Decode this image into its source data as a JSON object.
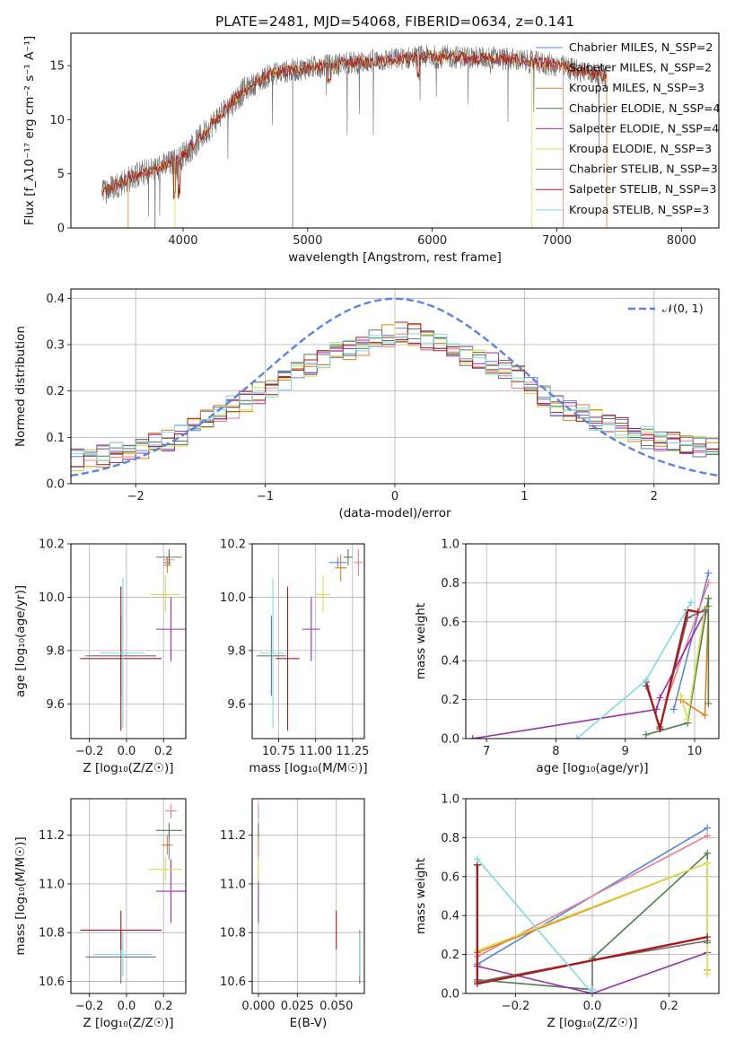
{
  "title": "PLATE=2481, MJD=54068, FIBERID=0634, z=0.141",
  "colors": {
    "chabrier_miles": "#5a84e0",
    "salpeter_miles": "#ea7f8f",
    "kroupa_miles": "#e6801a",
    "chabrier_elodie": "#4f7f4f",
    "salpeter_elodie": "#9a2fb0",
    "kroupa_elodie": "#d6e050",
    "chabrier_stelib": "#707070",
    "salpeter_stelib": "#aa1c1c",
    "kroupa_stelib": "#7fd9e8"
  },
  "chart_data": [
    {
      "type": "line",
      "panel": "spectrum",
      "xlabel": "wavelength [Angstrom, rest frame]",
      "ylabel": "Flux [f_λ10⁻¹⁷ erg cm⁻² s⁻¹ A⁻¹]",
      "xlim": [
        3100,
        8300
      ],
      "ylim": [
        0,
        18
      ],
      "xticks": [
        "4000",
        "5000",
        "6000",
        "7000",
        "8000"
      ],
      "yticks": [
        "0",
        "5",
        "10",
        "15"
      ],
      "legend_position": "top-right",
      "series": [
        {
          "name": "Chabrier MILES, N_SSP=2",
          "color_key": "chabrier_miles"
        },
        {
          "name": "Salpeter MILES, N_SSP=2",
          "color_key": "salpeter_miles"
        },
        {
          "name": "Kroupa MILES, N_SSP=3",
          "color_key": "kroupa_miles"
        },
        {
          "name": "Chabrier ELODIE, N_SSP=4",
          "color_key": "chabrier_elodie"
        },
        {
          "name": "Salpeter ELODIE, N_SSP=4",
          "color_key": "salpeter_elodie"
        },
        {
          "name": "Kroupa ELODIE, N_SSP=3",
          "color_key": "kroupa_elodie"
        },
        {
          "name": "Chabrier STELIB, N_SSP=3",
          "color_key": "chabrier_stelib"
        },
        {
          "name": "Salpeter STELIB, N_SSP=3",
          "color_key": "salpeter_stelib"
        },
        {
          "name": "Kroupa STELIB, N_SSP=3",
          "color_key": "kroupa_stelib"
        }
      ],
      "continuum": {
        "x": [
          3350,
          3500,
          3650,
          3800,
          3950,
          4100,
          4300,
          4500,
          4700,
          5000,
          5300,
          5600,
          5900,
          6200,
          6500,
          6700,
          7000,
          7200,
          7400
        ],
        "y": [
          3.2,
          4.2,
          5.0,
          5.5,
          6.2,
          7.8,
          10.5,
          12.8,
          14.2,
          14.8,
          15.2,
          15.5,
          15.8,
          15.8,
          15.7,
          15.5,
          15.0,
          14.5,
          14.0
        ]
      }
    },
    {
      "type": "histogram",
      "panel": "residuals",
      "xlabel": "(data-model)/error",
      "ylabel": "Normed distribution",
      "xlim": [
        -2.5,
        2.5
      ],
      "ylim": [
        0,
        0.42
      ],
      "xticks": [
        "−2",
        "−1",
        "0",
        "1",
        "2"
      ],
      "yticks": [
        "0.0",
        "0.1",
        "0.2",
        "0.3",
        "0.4"
      ],
      "bins": {
        "start": -2.5,
        "width": 0.1,
        "count": 50
      },
      "envelope": [
        0.05,
        0.055,
        0.06,
        0.065,
        0.07,
        0.075,
        0.085,
        0.095,
        0.105,
        0.12,
        0.135,
        0.15,
        0.165,
        0.18,
        0.195,
        0.21,
        0.225,
        0.24,
        0.255,
        0.27,
        0.28,
        0.29,
        0.3,
        0.31,
        0.32,
        0.33,
        0.32,
        0.31,
        0.3,
        0.29,
        0.28,
        0.27,
        0.26,
        0.25,
        0.23,
        0.21,
        0.19,
        0.17,
        0.16,
        0.15,
        0.14,
        0.13,
        0.12,
        0.11,
        0.1,
        0.095,
        0.09,
        0.085,
        0.08,
        0.075
      ],
      "gaussian_label": "𝒩(0, 1)",
      "gaussian_color": "#5a84e0"
    },
    {
      "type": "errorbar",
      "panel": "age_vs_Z",
      "xlabel": "Z [log₁₀(Z/Z☉)]",
      "ylabel": "age  [log₁₀(age/yr)]",
      "xlim": [
        -0.3,
        0.32
      ],
      "ylim": [
        9.47,
        10.2
      ],
      "xticks": [
        "−0.2",
        "0.0",
        "0.2"
      ],
      "yticks": [
        "9.6",
        "9.8",
        "10.0",
        "10.2"
      ],
      "points": [
        {
          "c": "chabrier_miles",
          "x": 0.22,
          "y": 10.13,
          "xe": 0.02,
          "ye": 0.02
        },
        {
          "c": "salpeter_miles",
          "x": 0.23,
          "y": 10.14,
          "xe": 0.03,
          "ye": 0.02
        },
        {
          "c": "kroupa_miles",
          "x": 0.22,
          "y": 10.12,
          "xe": 0.02,
          "ye": 0.03
        },
        {
          "c": "chabrier_elodie",
          "x": 0.23,
          "y": 10.15,
          "xe": 0.07,
          "ye": 0.03
        },
        {
          "c": "salpeter_elodie",
          "x": 0.24,
          "y": 9.88,
          "xe": 0.08,
          "ye": 0.12
        },
        {
          "c": "kroupa_elodie",
          "x": 0.21,
          "y": 10.01,
          "xe": 0.08,
          "ye": 0.07
        },
        {
          "c": "chabrier_stelib",
          "x": -0.03,
          "y": 9.78,
          "xe": 0.19,
          "ye": 0.15
        },
        {
          "c": "salpeter_stelib",
          "x": -0.03,
          "y": 9.77,
          "xe": 0.22,
          "ye": 0.27
        },
        {
          "c": "kroupa_stelib",
          "x": -0.02,
          "y": 9.79,
          "xe": 0.12,
          "ye": 0.28
        }
      ]
    },
    {
      "type": "errorbar",
      "panel": "age_vs_mass",
      "xlabel": "mass [log₁₀(M/M☉)]",
      "ylabel": "",
      "xlim": [
        10.57,
        11.33
      ],
      "ylim": [
        9.47,
        10.2
      ],
      "xticks": [
        "10.75",
        "11.00",
        "11.25"
      ],
      "yticks": [
        "9.6",
        "9.8",
        "10.0",
        "10.2"
      ],
      "points": [
        {
          "c": "chabrier_miles",
          "x": 11.15,
          "y": 10.13,
          "xe": 0.06,
          "ye": 0.02
        },
        {
          "c": "salpeter_miles",
          "x": 11.29,
          "y": 10.13,
          "xe": 0.03,
          "ye": 0.05
        },
        {
          "c": "kroupa_miles",
          "x": 11.17,
          "y": 10.11,
          "xe": 0.04,
          "ye": 0.05
        },
        {
          "c": "chabrier_elodie",
          "x": 11.22,
          "y": 10.15,
          "xe": 0.03,
          "ye": 0.03
        },
        {
          "c": "salpeter_elodie",
          "x": 10.97,
          "y": 9.88,
          "xe": 0.06,
          "ye": 0.12
        },
        {
          "c": "kroupa_elodie",
          "x": 11.05,
          "y": 10.01,
          "xe": 0.05,
          "ye": 0.07
        },
        {
          "c": "chabrier_stelib",
          "x": 10.7,
          "y": 9.78,
          "xe": 0.1,
          "ye": 0.15
        },
        {
          "c": "salpeter_stelib",
          "x": 10.81,
          "y": 9.77,
          "xe": 0.08,
          "ye": 0.27
        },
        {
          "c": "kroupa_stelib",
          "x": 10.71,
          "y": 9.79,
          "xe": 0.09,
          "ye": 0.28
        }
      ]
    },
    {
      "type": "line",
      "panel": "weight_vs_age",
      "xlabel": "age  [log₁₀(age/yr)]",
      "ylabel": "mass weight",
      "xlim": [
        6.7,
        10.35
      ],
      "ylim": [
        0,
        1
      ],
      "xticks": [
        "7",
        "8",
        "9",
        "10"
      ],
      "yticks": [
        "0.0",
        "0.2",
        "0.4",
        "0.6",
        "0.8",
        "1.0"
      ],
      "series": [
        {
          "c": "chabrier_miles",
          "x": [
            9.7,
            10.2
          ],
          "y": [
            0.15,
            0.85
          ]
        },
        {
          "c": "salpeter_miles",
          "x": [
            9.6,
            10.2
          ],
          "y": [
            0.2,
            0.8
          ]
        },
        {
          "c": "kroupa_miles",
          "x": [
            9.8,
            10.15,
            10.2
          ],
          "y": [
            0.2,
            0.12,
            0.68
          ]
        },
        {
          "c": "chabrier_elodie",
          "x": [
            9.3,
            9.9,
            10.2,
            10.2
          ],
          "y": [
            0.02,
            0.08,
            0.72,
            0.18
          ]
        },
        {
          "c": "salpeter_elodie",
          "x": [
            6.8,
            9.45,
            9.5,
            10.15
          ],
          "y": [
            0.0,
            0.15,
            0.21,
            0.65
          ]
        },
        {
          "c": "kroupa_elodie",
          "x": [
            9.8,
            9.9,
            10.15
          ],
          "y": [
            0.22,
            0.1,
            0.67
          ]
        },
        {
          "c": "chabrier_stelib",
          "x": [
            9.3,
            9.5,
            9.9,
            10.15
          ],
          "y": [
            0.27,
            0.06,
            0.62,
            0.66
          ]
        },
        {
          "c": "salpeter_stelib",
          "x": [
            9.3,
            9.5,
            9.9,
            10.05
          ],
          "y": [
            0.29,
            0.05,
            0.66,
            0.65
          ]
        },
        {
          "c": "kroupa_stelib",
          "x": [
            8.3,
            9.3,
            9.95
          ],
          "y": [
            0.0,
            0.3,
            0.7
          ]
        }
      ]
    },
    {
      "type": "errorbar",
      "panel": "mass_vs_Z",
      "xlabel": "Z [log₁₀(Z/Z☉)]",
      "ylabel": "mass [log₁₀(M/M☉)]",
      "xlim": [
        -0.3,
        0.32
      ],
      "ylim": [
        10.55,
        11.35
      ],
      "xticks": [
        "−0.2",
        "0.0",
        "0.2"
      ],
      "yticks": [
        "10.6",
        "10.8",
        "11.0",
        "11.2"
      ],
      "points": [
        {
          "c": "chabrier_miles",
          "x": 0.23,
          "y": 11.16,
          "xe": 0.02,
          "ye": 0.06
        },
        {
          "c": "salpeter_miles",
          "x": 0.24,
          "y": 11.3,
          "xe": 0.03,
          "ye": 0.03
        },
        {
          "c": "kroupa_miles",
          "x": 0.22,
          "y": 11.16,
          "xe": 0.03,
          "ye": 0.04
        },
        {
          "c": "chabrier_elodie",
          "x": 0.23,
          "y": 11.22,
          "xe": 0.07,
          "ye": 0.03
        },
        {
          "c": "salpeter_elodie",
          "x": 0.24,
          "y": 10.97,
          "xe": 0.08,
          "ye": 0.13
        },
        {
          "c": "kroupa_elodie",
          "x": 0.21,
          "y": 11.06,
          "xe": 0.09,
          "ye": 0.05
        },
        {
          "c": "chabrier_stelib",
          "x": -0.03,
          "y": 10.7,
          "xe": 0.19,
          "ye": 0.11
        },
        {
          "c": "salpeter_stelib",
          "x": -0.03,
          "y": 10.81,
          "xe": 0.22,
          "ye": 0.08
        },
        {
          "c": "kroupa_stelib",
          "x": -0.02,
          "y": 10.71,
          "xe": 0.16,
          "ye": 0.09
        }
      ]
    },
    {
      "type": "errorbar",
      "panel": "mass_vs_ebv",
      "xlabel": "E(B-V)",
      "ylabel": "",
      "xlim": [
        -0.004,
        0.068
      ],
      "ylim": [
        10.55,
        11.35
      ],
      "xticks": [
        "0.000",
        "0.025",
        "0.050"
      ],
      "yticks": [
        "10.6",
        "10.8",
        "11.0",
        "11.2"
      ],
      "points": [
        {
          "c": "chabrier_miles",
          "x": 0.0,
          "y": 11.16,
          "xe": 0,
          "ye": 0.06
        },
        {
          "c": "salpeter_miles",
          "x": 0.0,
          "y": 11.3,
          "xe": 0,
          "ye": 0.03
        },
        {
          "c": "kroupa_miles",
          "x": 0.0,
          "y": 11.16,
          "xe": 0,
          "ye": 0.04
        },
        {
          "c": "chabrier_elodie",
          "x": 0.0,
          "y": 11.22,
          "xe": 0,
          "ye": 0.03
        },
        {
          "c": "salpeter_elodie",
          "x": 0.0,
          "y": 10.97,
          "xe": 0,
          "ye": 0.13
        },
        {
          "c": "kroupa_elodie",
          "x": 0.0,
          "y": 11.06,
          "xe": 0,
          "ye": 0.05
        },
        {
          "c": "chabrier_stelib",
          "x": 0.065,
          "y": 10.7,
          "xe": 0,
          "ye": 0.11
        },
        {
          "c": "salpeter_stelib",
          "x": 0.05,
          "y": 10.81,
          "xe": 0,
          "ye": 0.08
        },
        {
          "c": "kroupa_stelib",
          "x": 0.065,
          "y": 10.71,
          "xe": 0,
          "ye": 0.09
        }
      ]
    },
    {
      "type": "line",
      "panel": "weight_vs_Z",
      "xlabel": "Z [log₁₀(Z/Z☉)]",
      "ylabel": "mass weight",
      "xlim": [
        -0.33,
        0.33
      ],
      "ylim": [
        0,
        1
      ],
      "xticks": [
        "−0.2",
        "0.0",
        "0.2"
      ],
      "yticks": [
        "0.0",
        "0.2",
        "0.4",
        "0.6",
        "0.8",
        "1.0"
      ],
      "series": [
        {
          "c": "chabrier_miles",
          "x": [
            -0.3,
            0.3
          ],
          "y": [
            0.15,
            0.85
          ]
        },
        {
          "c": "salpeter_miles",
          "x": [
            -0.3,
            0.3
          ],
          "y": [
            0.19,
            0.81
          ]
        },
        {
          "c": "kroupa_miles",
          "x": [
            -0.3,
            0.3,
            0.3
          ],
          "y": [
            0.21,
            0.67,
            0.12
          ]
        },
        {
          "c": "chabrier_elodie",
          "x": [
            -0.3,
            0.0,
            0.0,
            0.3,
            0.3
          ],
          "y": [
            0.07,
            0.02,
            0.18,
            0.72,
            0.26
          ]
        },
        {
          "c": "salpeter_elodie",
          "x": [
            -0.3,
            0.0,
            0.3
          ],
          "y": [
            0.14,
            0.0,
            0.21
          ]
        },
        {
          "c": "kroupa_elodie",
          "x": [
            -0.3,
            0.3,
            0.3
          ],
          "y": [
            0.22,
            0.67,
            0.1
          ]
        },
        {
          "c": "chabrier_stelib",
          "x": [
            -0.3,
            -0.3,
            0.0,
            0.3
          ],
          "y": [
            0.66,
            0.06,
            0.17,
            0.27
          ]
        },
        {
          "c": "salpeter_stelib",
          "x": [
            -0.3,
            -0.3,
            0.3
          ],
          "y": [
            0.66,
            0.05,
            0.29
          ]
        },
        {
          "c": "kroupa_stelib",
          "x": [
            -0.3,
            0.0,
            0.0
          ],
          "y": [
            0.69,
            0.0,
            0.02
          ]
        }
      ]
    }
  ]
}
